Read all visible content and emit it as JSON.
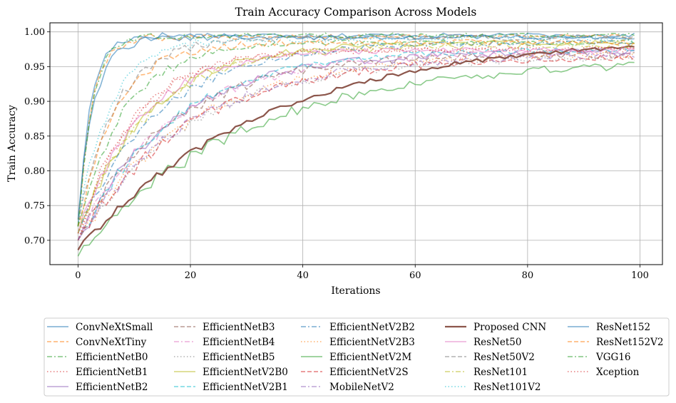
{
  "chart_data": {
    "type": "line",
    "title": "Train Accuracy Comparison Across Models",
    "xlabel": "Iterations",
    "ylabel": "Train Accuracy",
    "xlim": [
      -5,
      104
    ],
    "ylim": [
      0.665,
      1.013
    ],
    "xticks": [
      0,
      20,
      40,
      60,
      80,
      100
    ],
    "yticks": [
      0.7,
      0.75,
      0.8,
      0.85,
      0.9,
      0.95,
      1.0
    ],
    "grid": true,
    "legend_position": "below",
    "legend_columns": 5,
    "series": [
      {
        "name": "ConvNeXtSmall",
        "color": "#1f77b4",
        "dash": "solid",
        "start": 0.72,
        "plateau": 0.995,
        "rate": 0.45,
        "noise": 0.003
      },
      {
        "name": "ConvNeXtTiny",
        "color": "#ff7f0e",
        "dash": "dashed",
        "start": 0.72,
        "plateau": 0.993,
        "rate": 0.4,
        "noise": 0.003
      },
      {
        "name": "EfficientNetB0",
        "color": "#2ca02c",
        "dash": "dashdot",
        "start": 0.72,
        "plateau": 0.985,
        "rate": 0.12,
        "noise": 0.004
      },
      {
        "name": "EfficientNetB1",
        "color": "#d62728",
        "dash": "dotted",
        "start": 0.7,
        "plateau": 0.975,
        "rate": 0.1,
        "noise": 0.004
      },
      {
        "name": "EfficientNetB2",
        "color": "#9467bd",
        "dash": "solid",
        "start": 0.7,
        "plateau": 0.972,
        "rate": 0.06,
        "noise": 0.005
      },
      {
        "name": "EfficientNetB3",
        "color": "#8c564b",
        "dash": "dashed",
        "start": 0.7,
        "plateau": 0.968,
        "rate": 0.06,
        "noise": 0.005
      },
      {
        "name": "EfficientNetB4",
        "color": "#e377c2",
        "dash": "dashdot",
        "start": 0.7,
        "plateau": 0.97,
        "rate": 0.06,
        "noise": 0.005
      },
      {
        "name": "EfficientNetB5",
        "color": "#7f7f7f",
        "dash": "dotted",
        "start": 0.7,
        "plateau": 0.965,
        "rate": 0.05,
        "noise": 0.005
      },
      {
        "name": "EfficientNetV2B0",
        "color": "#bcbd22",
        "dash": "solid",
        "start": 0.71,
        "plateau": 0.985,
        "rate": 0.08,
        "noise": 0.004
      },
      {
        "name": "EfficientNetV2B1",
        "color": "#17becf",
        "dash": "dashed",
        "start": 0.7,
        "plateau": 0.975,
        "rate": 0.06,
        "noise": 0.004
      },
      {
        "name": "EfficientNetV2B2",
        "color": "#1f77b4",
        "dash": "dashdot",
        "start": 0.71,
        "plateau": 0.985,
        "rate": 0.07,
        "noise": 0.004
      },
      {
        "name": "EfficientNetV2B3",
        "color": "#ff7f0e",
        "dash": "dotted",
        "start": 0.7,
        "plateau": 0.97,
        "rate": 0.05,
        "noise": 0.005
      },
      {
        "name": "EfficientNetV2M",
        "color": "#2ca02c",
        "dash": "solid",
        "start": 0.677,
        "plateau": 0.96,
        "rate": 0.035,
        "noise": 0.006
      },
      {
        "name": "EfficientNetV2S",
        "color": "#d62728",
        "dash": "dashed",
        "start": 0.7,
        "plateau": 0.965,
        "rate": 0.05,
        "noise": 0.005
      },
      {
        "name": "MobileNetV2",
        "color": "#9467bd",
        "dash": "dashdot",
        "start": 0.7,
        "plateau": 0.968,
        "rate": 0.05,
        "noise": 0.005
      },
      {
        "name": "Proposed CNN",
        "color": "#8c564b",
        "dash": "solid",
        "start": 0.686,
        "plateau": 0.995,
        "rate": 0.03,
        "noise": 0.003,
        "bold": true
      },
      {
        "name": "ResNet50",
        "color": "#e377c2",
        "dash": "solid",
        "start": 0.71,
        "plateau": 0.975,
        "rate": 0.09,
        "noise": 0.004
      },
      {
        "name": "ResNet50V2",
        "color": "#7f7f7f",
        "dash": "dashed",
        "start": 0.72,
        "plateau": 0.992,
        "rate": 0.15,
        "noise": 0.004
      },
      {
        "name": "ResNet101",
        "color": "#bcbd22",
        "dash": "dashdot",
        "start": 0.71,
        "plateau": 0.98,
        "rate": 0.08,
        "noise": 0.004
      },
      {
        "name": "ResNet101V2",
        "color": "#17becf",
        "dash": "dotted",
        "start": 0.72,
        "plateau": 0.99,
        "rate": 0.18,
        "noise": 0.004
      },
      {
        "name": "ResNet152",
        "color": "#1f77b4",
        "dash": "solid",
        "start": 0.73,
        "plateau": 0.992,
        "rate": 0.35,
        "noise": 0.003
      },
      {
        "name": "ResNet152V2",
        "color": "#ff7f0e",
        "dash": "dashed",
        "start": 0.72,
        "plateau": 0.985,
        "rate": 0.15,
        "noise": 0.004
      },
      {
        "name": "VGG16",
        "color": "#2ca02c",
        "dash": "dashdot",
        "start": 0.72,
        "plateau": 0.995,
        "rate": 0.4,
        "noise": 0.003
      },
      {
        "name": "Xception",
        "color": "#d62728",
        "dash": "dotted",
        "start": 0.71,
        "plateau": 0.975,
        "rate": 0.1,
        "noise": 0.004
      }
    ]
  }
}
